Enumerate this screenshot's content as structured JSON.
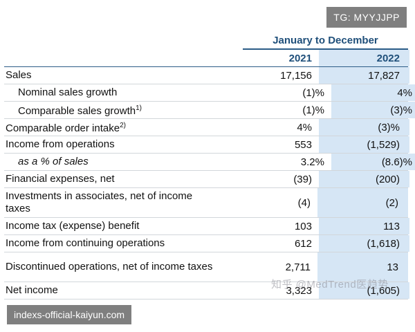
{
  "top_badge": "TG: MYYJJPP",
  "bottom_badge": "indexs-official-kaiyun.com",
  "watermark": "知乎 @MedTrend医趋势",
  "table": {
    "period_header": "January to December",
    "years": [
      "2021",
      "2022"
    ],
    "rows": [
      {
        "label": "Sales",
        "sup": "",
        "v2021": "17,156",
        "v2022": "17,827"
      },
      {
        "label": "Nominal sales growth",
        "sup": "",
        "v2021": "(1)%",
        "v2022": "4%"
      },
      {
        "label": "Comparable sales growth",
        "sup": "1)",
        "v2021": "(1)%",
        "v2022": "(3)%"
      },
      {
        "label": "Comparable order intake",
        "sup": "2)",
        "v2021": "4%",
        "v2022": "(3)%"
      },
      {
        "label": "Income from operations",
        "sup": "",
        "v2021": "553",
        "v2022": "(1,529)"
      },
      {
        "label": "as a % of sales",
        "sup": "",
        "v2021": "3.2%",
        "v2022": "(8.6)%"
      },
      {
        "label": "Financial expenses, net",
        "sup": "",
        "v2021": "(39)",
        "v2022": "(200)"
      },
      {
        "label": "Investments in associates, net of income taxes",
        "sup": "",
        "v2021": "(4)",
        "v2022": "(2)"
      },
      {
        "label": "Income tax (expense) benefit",
        "sup": "",
        "v2021": "103",
        "v2022": "113"
      },
      {
        "label": "Income from continuing operations",
        "sup": "",
        "v2021": "612",
        "v2022": "(1,618)"
      },
      {
        "label": "Discontinued operations, net of income taxes",
        "sup": "",
        "v2021": "2,711",
        "v2022": "13"
      },
      {
        "label": "Net income",
        "sup": "",
        "v2021": "3,323",
        "v2022": "(1,605)"
      }
    ]
  }
}
